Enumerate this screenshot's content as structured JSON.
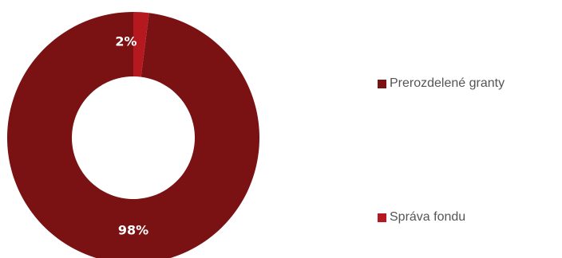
{
  "chart_data": {
    "type": "pie",
    "donut": true,
    "categories": [
      "Prerozdelené granty",
      "Správa fondu"
    ],
    "values": [
      98,
      2
    ],
    "data_labels": [
      "98%",
      "2%"
    ],
    "colors": [
      "#7A1214",
      "#B5191F"
    ],
    "legend_position": "right",
    "title": ""
  }
}
